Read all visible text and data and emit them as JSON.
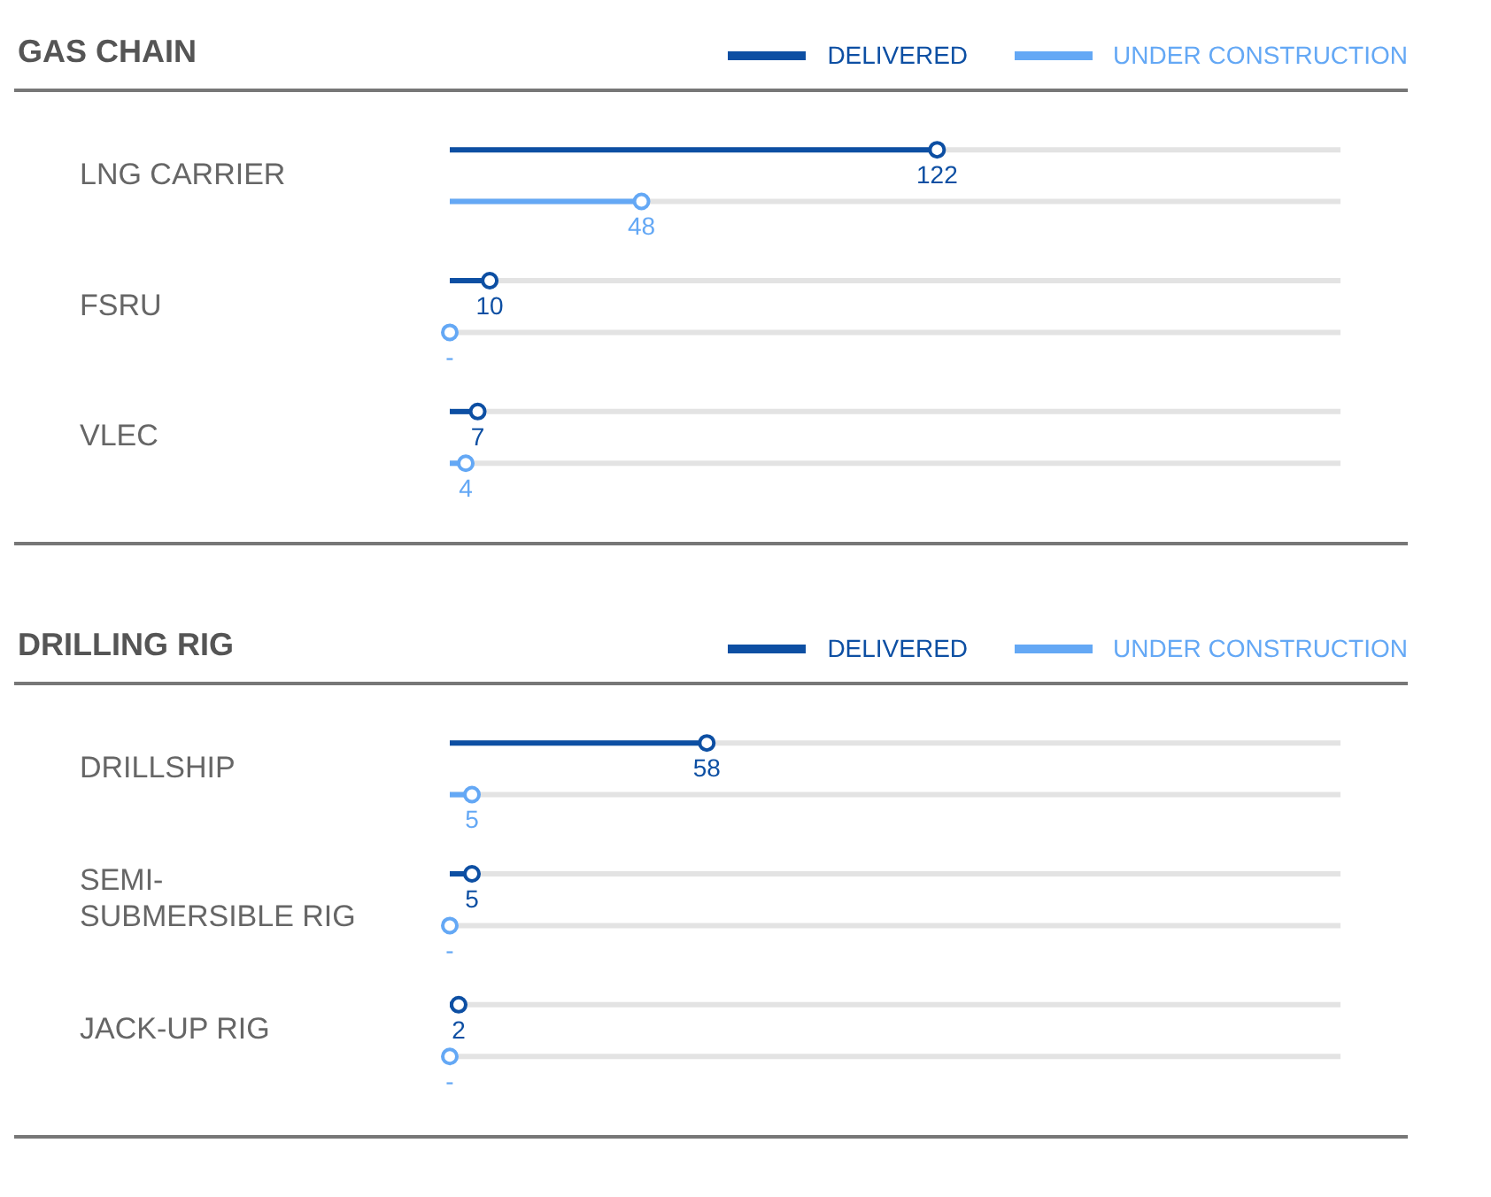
{
  "chart_data": [
    {
      "type": "lollipop",
      "title": "GAS CHAIN",
      "orientation": "horizontal",
      "categories": [
        "LNG CARRIER",
        "FSRU",
        "VLEC"
      ],
      "xlim": [
        0,
        223
      ],
      "legend": "top right",
      "marker": "circle",
      "grid": "y",
      "tick_labels": "y",
      "series": [
        {
          "name": "DELIVERED",
          "color": "#0d4fa3",
          "values": [
            122,
            10,
            7
          ],
          "value_labels": [
            "122",
            "10",
            "7"
          ]
        },
        {
          "name": "UNDER CONSTRUCTION",
          "color": "#64a8f5",
          "values": [
            48,
            0,
            4
          ],
          "value_labels": [
            "48",
            "-",
            "4"
          ]
        }
      ]
    },
    {
      "type": "lollipop",
      "title": "DRILLING RIG",
      "orientation": "horizontal",
      "categories": [
        "DRILLSHIP",
        "SEMI-SUBMERSIBLE RIG",
        "JACK-UP RIG"
      ],
      "xlim": [
        0,
        201
      ],
      "legend": "top right",
      "marker": "circle",
      "grid": "y",
      "tick_labels": "y",
      "series": [
        {
          "name": "DELIVERED",
          "color": "#0d4fa3",
          "values": [
            58,
            5,
            2
          ],
          "value_labels": [
            "58",
            "5",
            "2"
          ]
        },
        {
          "name": "UNDER CONSTRUCTION",
          "color": "#64a8f5",
          "values": [
            5,
            0,
            0
          ],
          "value_labels": [
            "5",
            "-",
            "-"
          ]
        }
      ]
    }
  ]
}
